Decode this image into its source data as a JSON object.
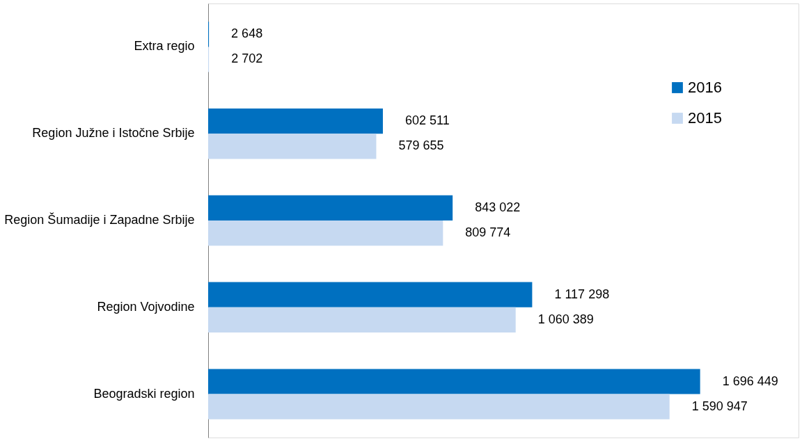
{
  "chart_data": {
    "type": "bar",
    "orientation": "horizontal",
    "legend": "top right",
    "grid": false,
    "categories": [
      "Extra regio",
      "Region Južne i Istočne Srbije",
      "Region Šumadije i Zapadne Srbije",
      "Region Vojvodine",
      "Beogradski region"
    ],
    "series": [
      {
        "name": "2016",
        "color": "#0070c0",
        "values": [
          2648,
          602511,
          843022,
          1117298,
          1696449
        ],
        "value_labels": [
          "2 648",
          "602 511",
          "843 022",
          "1 117 298",
          "1 696 449"
        ]
      },
      {
        "name": "2015",
        "color": "#c6d9f1",
        "values": [
          2702,
          579655,
          809774,
          1060389,
          1590947
        ],
        "value_labels": [
          "2 702",
          "579 655",
          "809 774",
          "1 060 389",
          "1 590 947"
        ]
      }
    ]
  }
}
